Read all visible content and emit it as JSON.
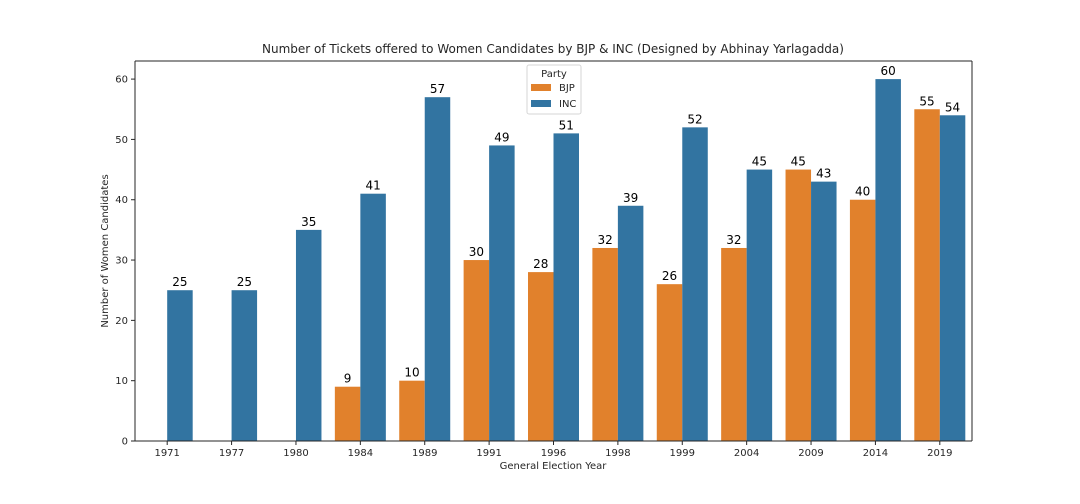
{
  "chart_data": {
    "type": "bar",
    "title": "Number of Tickets offered to Women Candidates by BJP & INC  (Designed by Abhinay Yarlagadda)",
    "xlabel": "General Election Year",
    "ylabel": "Number of Women Candidates",
    "categories": [
      "1971",
      "1977",
      "1980",
      "1984",
      "1989",
      "1991",
      "1996",
      "1998",
      "1999",
      "2004",
      "2009",
      "2014",
      "2019"
    ],
    "series": [
      {
        "name": "BJP",
        "color": "#e1812c",
        "values": [
          null,
          null,
          null,
          9,
          10,
          30,
          28,
          32,
          26,
          32,
          45,
          40,
          55
        ]
      },
      {
        "name": "INC",
        "color": "#3274a1",
        "values": [
          25,
          25,
          35,
          41,
          57,
          49,
          51,
          39,
          52,
          45,
          43,
          60,
          54
        ]
      }
    ],
    "ylim": [
      0,
      63
    ],
    "yticks": [
      0,
      10,
      20,
      30,
      40,
      50,
      60
    ],
    "legend": {
      "title": "Party",
      "position": "top-center"
    },
    "grid": false
  }
}
